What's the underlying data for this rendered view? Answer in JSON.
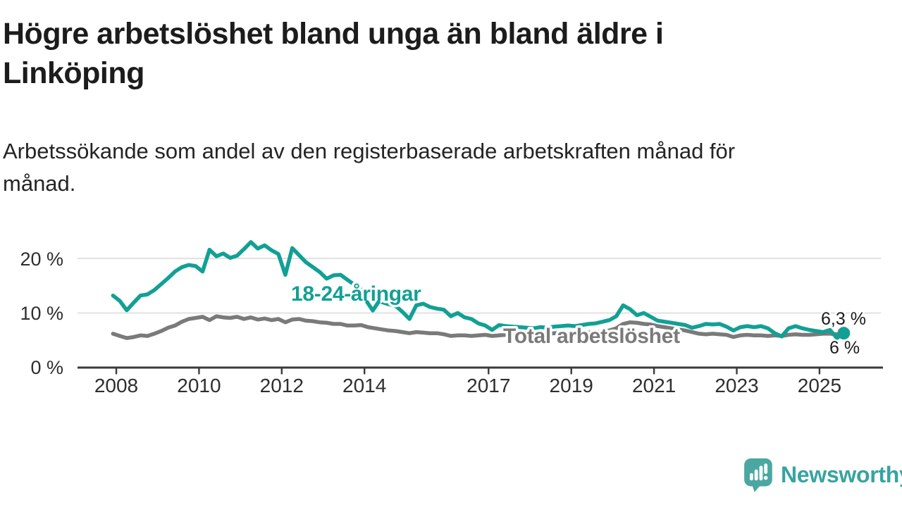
{
  "header": {
    "title_lines": [
      "Högre arbetslöshet bland unga än bland äldre i",
      "Linköping"
    ],
    "subtitle_lines": [
      "Arbetssökande som andel av den registerbaserade arbetskraften månad för",
      "månad."
    ]
  },
  "chart_data": {
    "type": "line",
    "title": "Högre arbetslöshet bland unga än bland äldre i Linköping",
    "subtitle": "Arbetssökande som andel av den registerbaserade arbetskraften månad för månad.",
    "grid": "horizontal-only",
    "x_axis": {
      "ticks": [
        2008,
        2010,
        2012,
        2014,
        2017,
        2019,
        2021,
        2023,
        2025
      ],
      "range_years": [
        2007.1,
        2026.6
      ]
    },
    "y_axis": {
      "unit": "%",
      "range": [
        0,
        23.5
      ],
      "ticks": [
        {
          "value": 0,
          "label": "0 %"
        },
        {
          "value": 10,
          "label": "10 %"
        },
        {
          "value": 20,
          "label": "20 %"
        }
      ]
    },
    "series": [
      {
        "name": "18-24-åringar",
        "color": "#12A095",
        "start_year": 2007.92,
        "points_per_year": 6,
        "end_dot": true,
        "end_label": "6,3 %",
        "end_value": 6.3,
        "values": [
          13.2,
          12.2,
          10.5,
          11.9,
          13.2,
          13.4,
          14.2,
          15.3,
          16.4,
          17.6,
          18.4,
          18.8,
          18.6,
          17.6,
          21.6,
          20.4,
          20.9,
          20.1,
          20.5,
          21.7,
          23.0,
          21.8,
          22.4,
          21.5,
          20.8,
          17.0,
          21.9,
          20.6,
          19.3,
          18.4,
          17.5,
          16.3,
          16.9,
          17.0,
          16.1,
          15.2,
          14.3,
          13.4,
          12.6,
          12.0,
          11.6,
          11.3,
          10.2,
          8.9,
          11.4,
          11.7,
          11.1,
          10.8,
          10.6,
          9.4,
          10.0,
          9.2,
          8.9,
          8.1,
          7.7,
          6.9,
          7.8,
          7.6,
          7.5,
          7.4,
          7.3,
          7.2,
          7.4,
          7.3,
          7.5,
          7.6,
          7.7,
          7.6,
          7.8,
          8.0,
          8.1,
          8.4,
          8.7,
          9.4,
          11.4,
          10.7,
          9.6,
          10.0,
          9.3,
          8.6,
          8.4,
          8.2,
          8.0,
          7.8,
          7.3,
          7.6,
          8.0,
          7.9,
          8.0,
          7.5,
          6.8,
          7.4,
          7.6,
          7.4,
          7.6,
          7.2,
          6.3,
          5.7,
          7.2,
          7.6,
          7.2,
          6.9,
          6.7,
          6.5,
          6.9,
          5.4,
          6.3
        ]
      },
      {
        "name": "Total arbetslöshet",
        "color": "#7A7A7A",
        "start_year": 2007.92,
        "points_per_year": 6,
        "end_dot": false,
        "end_label": "6 %",
        "end_value": 6.0,
        "values": [
          6.2,
          5.8,
          5.4,
          5.6,
          5.9,
          5.8,
          6.2,
          6.7,
          7.3,
          7.7,
          8.4,
          8.9,
          9.1,
          9.3,
          8.7,
          9.4,
          9.2,
          9.1,
          9.3,
          8.9,
          9.2,
          8.8,
          9.0,
          8.7,
          8.9,
          8.3,
          8.8,
          8.9,
          8.6,
          8.5,
          8.3,
          8.2,
          8.0,
          8.0,
          7.7,
          7.7,
          7.8,
          7.4,
          7.2,
          7.0,
          6.8,
          6.7,
          6.5,
          6.3,
          6.5,
          6.4,
          6.3,
          6.3,
          6.1,
          5.8,
          5.9,
          5.9,
          5.8,
          5.9,
          6.0,
          5.8,
          5.9,
          6.0,
          6.1,
          6.2,
          6.2,
          6.1,
          6.2,
          6.2,
          6.3,
          6.3,
          6.3,
          6.3,
          6.4,
          6.4,
          6.5,
          6.6,
          6.8,
          7.2,
          8.0,
          8.3,
          8.2,
          8.0,
          7.9,
          7.6,
          7.4,
          7.2,
          7.0,
          6.8,
          6.5,
          6.2,
          6.1,
          6.2,
          6.1,
          6.0,
          5.6,
          5.9,
          6.0,
          5.9,
          5.9,
          5.8,
          5.9,
          5.8,
          6.0,
          6.1,
          6.0,
          6.0,
          6.1,
          6.2,
          6.2,
          6.1,
          6.0
        ]
      }
    ],
    "legend_position": "inline-annotations"
  },
  "branding": {
    "logo_text": "Newsworthy",
    "logo_color": "#37A4A0",
    "logo_bubble_color": "#4AA7A2",
    "logo_icon": "speech-bubble-bar-chart"
  }
}
